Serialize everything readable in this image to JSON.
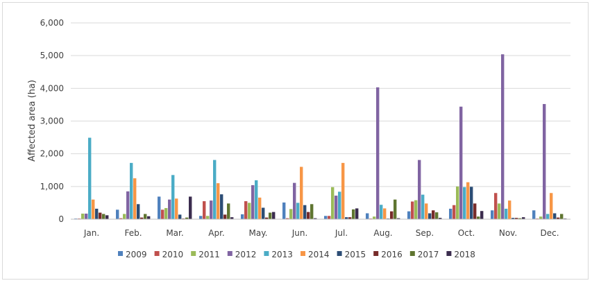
{
  "chart_data": {
    "type": "bar",
    "title": "",
    "xlabel": "",
    "ylabel": "Affected area (ha)",
    "ylim": [
      0,
      6000
    ],
    "yticks": [
      0,
      1000,
      2000,
      3000,
      4000,
      5000,
      6000
    ],
    "ytick_labels": [
      "0",
      "1,000",
      "2,000",
      "3,000",
      "4,000",
      "5,000",
      "6,000"
    ],
    "grid": true,
    "legend_position": "bottom",
    "categories": [
      "Jan.",
      "Feb.",
      "Mar.",
      "Apr.",
      "May.",
      "Jun.",
      "Jul.",
      "Aug.",
      "Sep.",
      "Oct.",
      "Nov.",
      "Dec."
    ],
    "series": [
      {
        "name": "2009",
        "color": "#4f81bd",
        "values": [
          20,
          290,
          690,
          100,
          150,
          510,
          100,
          180,
          240,
          320,
          270,
          270
        ]
      },
      {
        "name": "2010",
        "color": "#c0504d",
        "values": [
          20,
          30,
          290,
          550,
          550,
          30,
          100,
          20,
          540,
          430,
          800,
          20
        ]
      },
      {
        "name": "2011",
        "color": "#9bbb59",
        "values": [
          170,
          160,
          340,
          100,
          500,
          310,
          980,
          80,
          580,
          1000,
          480,
          80
        ]
      },
      {
        "name": "2012",
        "color": "#8064a2",
        "values": [
          170,
          850,
          600,
          570,
          1040,
          1110,
          720,
          4030,
          1810,
          3440,
          5040,
          3520
        ]
      },
      {
        "name": "2013",
        "color": "#4bacc6",
        "values": [
          2490,
          1720,
          1350,
          1810,
          1190,
          500,
          840,
          440,
          750,
          980,
          320,
          160
        ]
      },
      {
        "name": "2014",
        "color": "#f79646",
        "values": [
          600,
          1250,
          630,
          1100,
          660,
          1600,
          1720,
          330,
          480,
          1130,
          570,
          800
        ]
      },
      {
        "name": "2015",
        "color": "#2c4d75",
        "values": [
          320,
          460,
          140,
          760,
          350,
          430,
          60,
          20,
          180,
          990,
          40,
          180
        ]
      },
      {
        "name": "2016",
        "color": "#772c2a",
        "values": [
          200,
          50,
          20,
          140,
          50,
          220,
          60,
          240,
          270,
          480,
          40,
          50
        ]
      },
      {
        "name": "2017",
        "color": "#5f7530",
        "values": [
          160,
          160,
          50,
          480,
          200,
          460,
          300,
          600,
          210,
          80,
          30,
          160
        ]
      },
      {
        "name": "2018",
        "color": "#3b2c4e",
        "values": [
          120,
          90,
          690,
          60,
          220,
          30,
          330,
          30,
          40,
          250,
          60,
          20
        ]
      }
    ]
  }
}
